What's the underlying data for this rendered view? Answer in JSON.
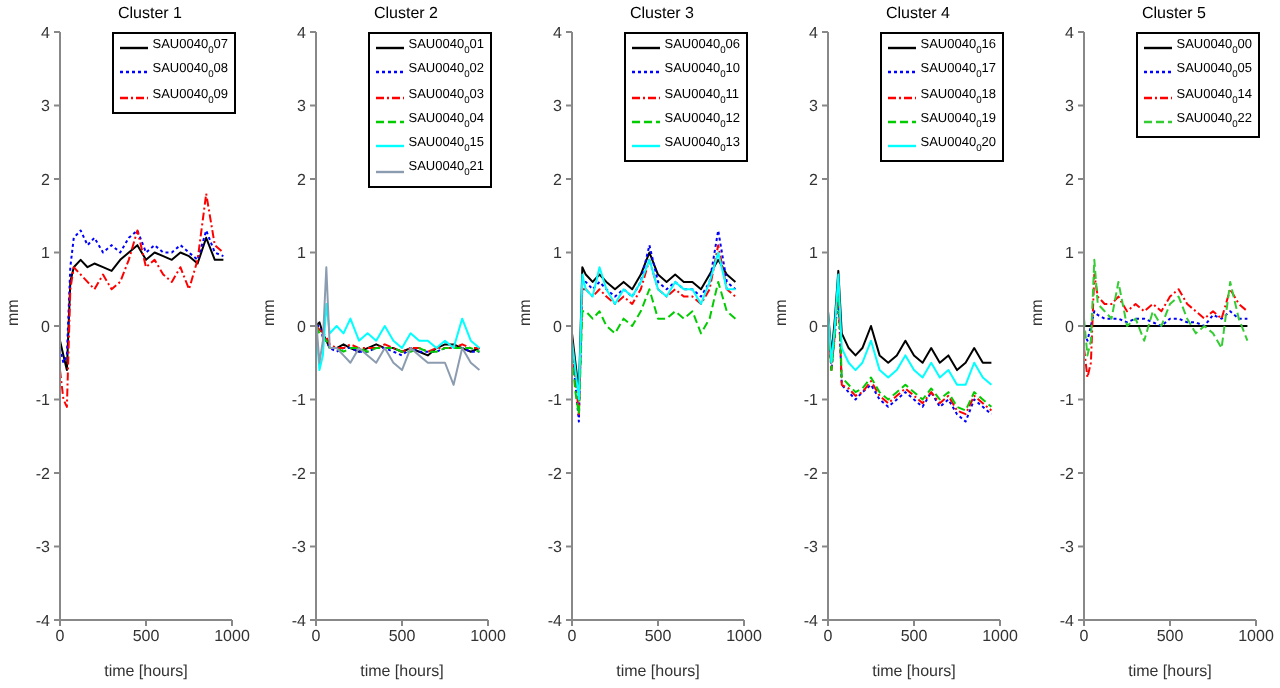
{
  "chart_data": [
    {
      "type": "line",
      "title": "Cluster 1",
      "xlabel": "time [hours]",
      "ylabel": "mm",
      "legend": "top right",
      "xlim": [
        0,
        1000
      ],
      "xticks": [
        0,
        500,
        1000
      ],
      "ylim": [
        -4,
        4
      ],
      "yticks": [
        -4,
        -3,
        -2,
        -1,
        0,
        1,
        2,
        3,
        4
      ],
      "x": [
        0,
        20,
        40,
        60,
        80,
        120,
        160,
        200,
        250,
        300,
        350,
        400,
        450,
        500,
        550,
        600,
        650,
        700,
        750,
        800,
        850,
        900,
        950
      ],
      "series": [
        {
          "name": "SAU0040$_{0}$07",
          "color": "#000000",
          "line_style": "solid",
          "values": [
            -0.2,
            -0.4,
            -0.6,
            0.6,
            0.8,
            0.9,
            0.8,
            0.85,
            0.8,
            0.75,
            0.9,
            1.0,
            1.1,
            0.9,
            1.0,
            0.95,
            0.9,
            1.0,
            0.95,
            0.85,
            1.2,
            0.9,
            0.9
          ]
        },
        {
          "name": "SAU0040$_{0}$08",
          "color": "#0000ff",
          "line_style": "dotted",
          "values": [
            -0.3,
            -0.5,
            -0.4,
            0.8,
            1.2,
            1.3,
            1.1,
            1.2,
            1.0,
            1.1,
            1.0,
            1.2,
            1.3,
            1.0,
            1.1,
            1.0,
            1.0,
            1.1,
            1.0,
            0.9,
            1.3,
            1.0,
            0.95
          ]
        },
        {
          "name": "SAU0040$_{0}$09",
          "color": "#ff0000",
          "line_style": "dashdot",
          "values": [
            -0.6,
            -1.0,
            -1.1,
            0.5,
            0.8,
            0.7,
            0.6,
            0.5,
            0.7,
            0.5,
            0.6,
            0.9,
            1.3,
            0.8,
            0.9,
            0.7,
            0.6,
            0.8,
            0.5,
            0.9,
            1.8,
            1.1,
            1.0
          ]
        }
      ]
    },
    {
      "type": "line",
      "title": "Cluster 2",
      "xlabel": "time [hours]",
      "ylabel": "mm",
      "legend": "top right",
      "xlim": [
        0,
        1000
      ],
      "xticks": [
        0,
        500,
        1000
      ],
      "ylim": [
        -4,
        4
      ],
      "yticks": [
        -4,
        -3,
        -2,
        -1,
        0,
        1,
        2,
        3,
        4
      ],
      "x": [
        0,
        20,
        40,
        60,
        80,
        120,
        160,
        200,
        250,
        300,
        350,
        400,
        450,
        500,
        550,
        600,
        650,
        700,
        750,
        800,
        850,
        900,
        950
      ],
      "series": [
        {
          "name": "SAU0040$_{0}$01",
          "color": "#000000",
          "line_style": "solid",
          "values": [
            0,
            0.05,
            -0.1,
            -0.2,
            -0.3,
            -0.3,
            -0.25,
            -0.3,
            -0.35,
            -0.3,
            -0.25,
            -0.3,
            -0.3,
            -0.35,
            -0.3,
            -0.35,
            -0.4,
            -0.3,
            -0.25,
            -0.25,
            -0.3,
            -0.35,
            -0.3
          ]
        },
        {
          "name": "SAU0040$_{0}$02",
          "color": "#0000ff",
          "line_style": "dotted",
          "values": [
            0,
            0,
            -0.15,
            -0.2,
            -0.3,
            -0.35,
            -0.3,
            -0.3,
            -0.35,
            -0.35,
            -0.3,
            -0.3,
            -0.35,
            -0.4,
            -0.3,
            -0.35,
            -0.35,
            -0.35,
            -0.3,
            -0.3,
            -0.3,
            -0.35,
            -0.35
          ]
        },
        {
          "name": "SAU0040$_{0}$03",
          "color": "#ff0000",
          "line_style": "dashdot",
          "values": [
            0,
            -0.05,
            -0.1,
            -0.15,
            -0.25,
            -0.3,
            -0.3,
            -0.25,
            -0.3,
            -0.3,
            -0.3,
            -0.25,
            -0.3,
            -0.35,
            -0.3,
            -0.3,
            -0.35,
            -0.3,
            -0.3,
            -0.3,
            -0.25,
            -0.3,
            -0.3
          ]
        },
        {
          "name": "SAU0040$_{0}$04",
          "color": "#00cc00",
          "line_style": "dashed",
          "values": [
            0,
            -0.1,
            -0.15,
            -0.2,
            -0.3,
            -0.3,
            -0.35,
            -0.3,
            -0.3,
            -0.35,
            -0.3,
            -0.3,
            -0.3,
            -0.35,
            -0.35,
            -0.3,
            -0.35,
            -0.35,
            -0.3,
            -0.3,
            -0.3,
            -0.3,
            -0.35
          ]
        },
        {
          "name": "SAU0040$_{0}$15",
          "color": "#00ffff",
          "line_style": "solid",
          "values": [
            0,
            -0.6,
            -0.4,
            0.3,
            -0.1,
            0.0,
            -0.1,
            0.1,
            -0.2,
            -0.1,
            -0.2,
            0.0,
            -0.2,
            -0.3,
            -0.1,
            -0.2,
            -0.2,
            -0.3,
            -0.2,
            -0.3,
            0.1,
            -0.2,
            -0.3
          ]
        },
        {
          "name": "SAU0040$_{0}$21",
          "color": "#8c9cb0",
          "line_style": "solid",
          "values": [
            0.1,
            -0.5,
            -0.2,
            0.8,
            -0.3,
            -0.3,
            -0.4,
            -0.5,
            -0.3,
            -0.4,
            -0.5,
            -0.3,
            -0.5,
            -0.6,
            -0.3,
            -0.4,
            -0.5,
            -0.5,
            -0.5,
            -0.8,
            -0.3,
            -0.5,
            -0.6
          ]
        }
      ]
    },
    {
      "type": "line",
      "title": "Cluster 3",
      "xlabel": "time [hours]",
      "ylabel": "mm",
      "legend": "top right",
      "xlim": [
        0,
        1000
      ],
      "xticks": [
        0,
        500,
        1000
      ],
      "ylim": [
        -4,
        4
      ],
      "yticks": [
        -4,
        -3,
        -2,
        -1,
        0,
        1,
        2,
        3,
        4
      ],
      "x": [
        0,
        20,
        40,
        60,
        80,
        120,
        160,
        200,
        250,
        300,
        350,
        400,
        450,
        500,
        550,
        600,
        650,
        700,
        750,
        800,
        850,
        900,
        950
      ],
      "series": [
        {
          "name": "SAU0040$_{0}$06",
          "color": "#000000",
          "line_style": "solid",
          "values": [
            -0.1,
            -0.5,
            -0.9,
            0.8,
            0.7,
            0.6,
            0.7,
            0.6,
            0.5,
            0.6,
            0.5,
            0.7,
            1.0,
            0.7,
            0.6,
            0.7,
            0.6,
            0.6,
            0.5,
            0.7,
            0.9,
            0.7,
            0.6
          ]
        },
        {
          "name": "SAU0040$_{0}$10",
          "color": "#0000ff",
          "line_style": "dotted",
          "values": [
            -0.3,
            -0.8,
            -1.3,
            0.6,
            0.6,
            0.5,
            0.6,
            0.5,
            0.4,
            0.5,
            0.4,
            0.6,
            1.1,
            0.6,
            0.5,
            0.6,
            0.5,
            0.5,
            0.4,
            0.6,
            1.3,
            0.6,
            0.5
          ]
        },
        {
          "name": "SAU0040$_{0}$11",
          "color": "#ff0000",
          "line_style": "dashdot",
          "values": [
            -0.3,
            -0.7,
            -1.2,
            0.5,
            0.5,
            0.4,
            0.5,
            0.4,
            0.3,
            0.4,
            0.3,
            0.5,
            0.9,
            0.5,
            0.4,
            0.5,
            0.4,
            0.4,
            0.3,
            0.5,
            1.1,
            0.5,
            0.4
          ]
        },
        {
          "name": "SAU0040$_{0}$12",
          "color": "#00cc00",
          "line_style": "dashed",
          "values": [
            -0.4,
            -0.9,
            -1.2,
            0.2,
            0.2,
            0.1,
            0.2,
            0.0,
            -0.1,
            0.1,
            0.0,
            0.2,
            0.5,
            0.1,
            0.1,
            0.2,
            0.1,
            0.2,
            -0.1,
            0.1,
            0.6,
            0.2,
            0.1
          ]
        },
        {
          "name": "SAU0040$_{0}$13",
          "color": "#00ffff",
          "line_style": "solid",
          "values": [
            -0.2,
            -0.6,
            -1.0,
            0.7,
            0.5,
            0.4,
            0.8,
            0.5,
            0.3,
            0.5,
            0.4,
            0.6,
            0.9,
            0.5,
            0.4,
            0.6,
            0.5,
            0.5,
            0.3,
            0.6,
            1.0,
            0.5,
            0.5
          ]
        }
      ]
    },
    {
      "type": "line",
      "title": "Cluster 4",
      "xlabel": "time [hours]",
      "ylabel": "mm",
      "legend": "top right",
      "xlim": [
        0,
        1000
      ],
      "xticks": [
        0,
        500,
        1000
      ],
      "ylim": [
        -4,
        4
      ],
      "yticks": [
        -4,
        -3,
        -2,
        -1,
        0,
        1,
        2,
        3,
        4
      ],
      "x": [
        0,
        20,
        40,
        60,
        80,
        120,
        160,
        200,
        250,
        300,
        350,
        400,
        450,
        500,
        550,
        600,
        650,
        700,
        750,
        800,
        850,
        900,
        950
      ],
      "series": [
        {
          "name": "SAU0040$_{0}$16",
          "color": "#000000",
          "line_style": "solid",
          "values": [
            0.2,
            -0.4,
            0.1,
            0.75,
            -0.1,
            -0.3,
            -0.4,
            -0.3,
            0.0,
            -0.4,
            -0.5,
            -0.4,
            -0.2,
            -0.4,
            -0.5,
            -0.3,
            -0.5,
            -0.4,
            -0.6,
            -0.5,
            -0.3,
            -0.5,
            -0.5
          ]
        },
        {
          "name": "SAU0040$_{0}$17",
          "color": "#0000ff",
          "line_style": "dotted",
          "values": [
            0.1,
            -0.6,
            -0.1,
            0.45,
            -0.8,
            -0.9,
            -1.0,
            -0.9,
            -0.8,
            -1.0,
            -1.1,
            -1.0,
            -0.9,
            -1.0,
            -1.1,
            -0.9,
            -1.1,
            -1.0,
            -1.2,
            -1.3,
            -1.0,
            -1.1,
            -1.2
          ]
        },
        {
          "name": "SAU0040$_{0}$18",
          "color": "#ff0000",
          "line_style": "dashdot",
          "values": [
            0.1,
            -0.6,
            -0.1,
            0.5,
            -0.8,
            -0.85,
            -0.95,
            -0.9,
            -0.75,
            -0.95,
            -1.05,
            -0.95,
            -0.85,
            -0.95,
            -1.05,
            -0.9,
            -1.05,
            -0.95,
            -1.15,
            -1.2,
            -0.95,
            -1.05,
            -1.15
          ]
        },
        {
          "name": "SAU0040$_{0}$19",
          "color": "#00cc00",
          "line_style": "dashed",
          "values": [
            0.1,
            -0.6,
            -0.1,
            0.6,
            -0.7,
            -0.8,
            -0.9,
            -0.85,
            -0.7,
            -0.9,
            -1.0,
            -0.9,
            -0.8,
            -0.9,
            -1.0,
            -0.85,
            -1.0,
            -0.9,
            -1.1,
            -1.15,
            -0.9,
            -1.0,
            -1.1
          ]
        },
        {
          "name": "SAU0040$_{0}$20",
          "color": "#00ffff",
          "line_style": "solid",
          "values": [
            0.2,
            -0.5,
            0.0,
            0.7,
            -0.3,
            -0.5,
            -0.6,
            -0.5,
            -0.2,
            -0.6,
            -0.7,
            -0.6,
            -0.4,
            -0.6,
            -0.7,
            -0.5,
            -0.7,
            -0.6,
            -0.8,
            -0.8,
            -0.5,
            -0.7,
            -0.8
          ]
        }
      ]
    },
    {
      "type": "line",
      "title": "Cluster 5",
      "xlabel": "time [hours]",
      "ylabel": "mm",
      "legend": "top right",
      "xlim": [
        0,
        1000
      ],
      "xticks": [
        0,
        500,
        1000
      ],
      "ylim": [
        -4,
        4
      ],
      "yticks": [
        -4,
        -3,
        -2,
        -1,
        0,
        1,
        2,
        3,
        4
      ],
      "x": [
        0,
        20,
        40,
        60,
        80,
        120,
        160,
        200,
        250,
        300,
        350,
        400,
        450,
        500,
        550,
        600,
        650,
        700,
        750,
        800,
        850,
        900,
        950
      ],
      "series": [
        {
          "name": "SAU0040$_{0}$00",
          "color": "#000000",
          "line_style": "solid",
          "values": [
            0,
            0,
            0,
            0,
            0,
            0,
            0,
            0,
            0,
            0,
            0,
            0,
            0,
            0,
            0,
            0,
            0,
            0,
            0,
            0,
            0,
            0,
            0
          ]
        },
        {
          "name": "SAU0040$_{0}$05",
          "color": "#0000ff",
          "line_style": "dotted",
          "values": [
            -0.1,
            -0.2,
            0.0,
            0.2,
            0.15,
            0.1,
            0.1,
            0.1,
            0.05,
            0.1,
            0.1,
            0.05,
            0.0,
            0.1,
            0.1,
            0.05,
            0.05,
            0.0,
            0.15,
            0.1,
            0.2,
            0.1,
            0.1
          ]
        },
        {
          "name": "SAU0040$_{0}$14",
          "color": "#ff0000",
          "line_style": "dashdot",
          "values": [
            -0.3,
            -0.7,
            -0.5,
            0.7,
            0.4,
            0.3,
            0.3,
            0.4,
            0.2,
            0.3,
            0.2,
            0.3,
            0.2,
            0.4,
            0.5,
            0.3,
            0.2,
            0.1,
            0.2,
            0.1,
            0.5,
            0.3,
            0.2
          ]
        },
        {
          "name": "SAU0040$_{0}$22",
          "color": "#33cc33",
          "line_style": "dashed",
          "values": [
            0.1,
            -0.4,
            -0.2,
            0.9,
            0.3,
            0.2,
            0.1,
            0.6,
            0.0,
            0.1,
            -0.2,
            0.2,
            0.0,
            0.3,
            0.4,
            0.1,
            -0.1,
            0.0,
            -0.1,
            -0.3,
            0.6,
            0.1,
            -0.2
          ]
        }
      ]
    }
  ]
}
